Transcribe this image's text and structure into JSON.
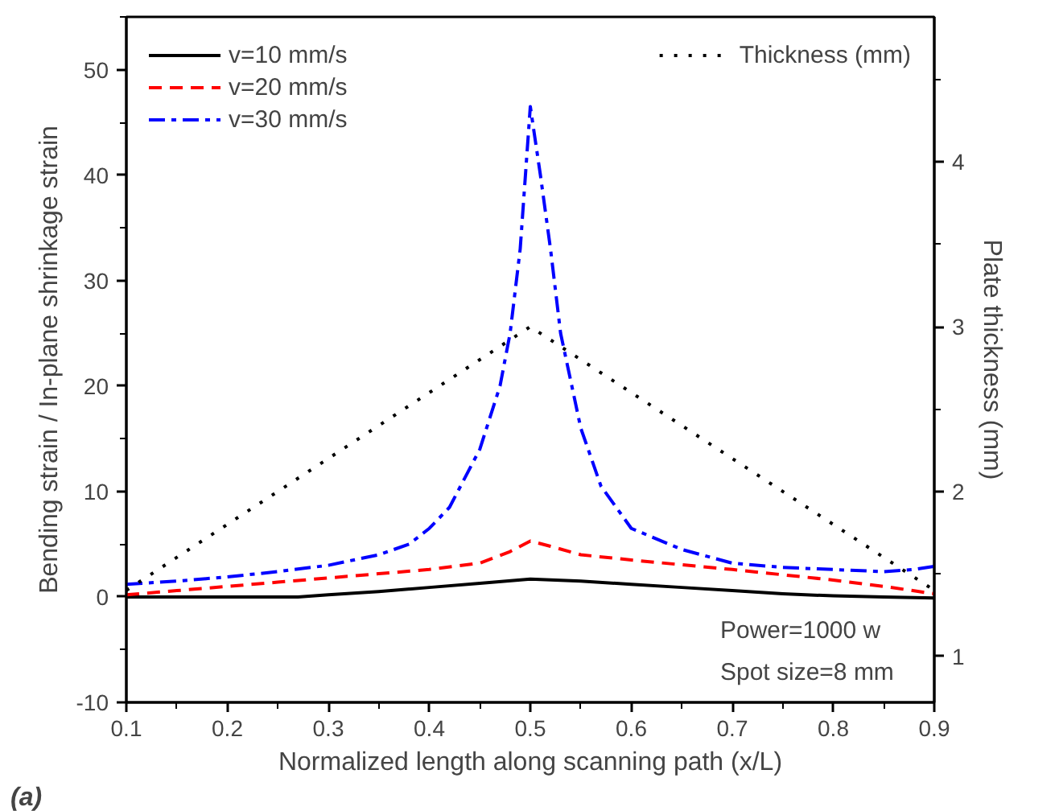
{
  "chart_data": {
    "type": "line",
    "xlabel": "Normalized length along scanning path (x/L)",
    "ylabel": "Bending strain / In-plane shrinkage strain",
    "y2label": "Plate thickness (mm)",
    "xlim": [
      0.1,
      0.9
    ],
    "xticks": [
      0.1,
      0.2,
      0.3,
      0.4,
      0.5,
      0.6,
      0.7,
      0.8,
      0.9
    ],
    "ylim": [
      -10,
      55
    ],
    "yticks": [
      -10,
      0,
      10,
      20,
      30,
      40,
      50
    ],
    "y2lim": [
      0.72,
      4.88
    ],
    "y2ticks": [
      1,
      2,
      3,
      4
    ],
    "legend": "top left",
    "grid": false,
    "marker": "none",
    "series": [
      {
        "name": "v=10 mm/s",
        "color": "#000000",
        "line_style": "solid",
        "x": [
          0.1,
          0.15,
          0.2,
          0.25,
          0.27,
          0.3,
          0.35,
          0.4,
          0.45,
          0.5,
          0.55,
          0.6,
          0.65,
          0.7,
          0.75,
          0.8,
          0.85,
          0.9
        ],
        "values": [
          0,
          0,
          0,
          0,
          0,
          0.2,
          0.5,
          0.9,
          1.3,
          1.7,
          1.5,
          1.2,
          0.9,
          0.6,
          0.3,
          0.1,
          0,
          -0.1
        ]
      },
      {
        "name": "v=20 mm/s",
        "color": "#ff0000",
        "line_style": "dashed",
        "x": [
          0.1,
          0.15,
          0.2,
          0.25,
          0.3,
          0.35,
          0.4,
          0.45,
          0.48,
          0.5,
          0.52,
          0.55,
          0.6,
          0.7,
          0.8,
          0.85,
          0.9
        ],
        "values": [
          0.2,
          0.6,
          1.0,
          1.4,
          1.8,
          2.2,
          2.6,
          3.2,
          4.3,
          5.3,
          4.8,
          4.0,
          3.5,
          2.6,
          1.6,
          1.0,
          0.3
        ]
      },
      {
        "name": "v=30 mm/s",
        "color": "#0000ff",
        "line_style": "dashdot",
        "x": [
          0.1,
          0.15,
          0.2,
          0.25,
          0.3,
          0.35,
          0.38,
          0.4,
          0.42,
          0.45,
          0.47,
          0.48,
          0.49,
          0.5,
          0.51,
          0.52,
          0.53,
          0.55,
          0.57,
          0.6,
          0.65,
          0.7,
          0.75,
          0.8,
          0.85,
          0.88,
          0.9
        ],
        "values": [
          1.2,
          1.5,
          1.9,
          2.4,
          3.0,
          4.0,
          5.0,
          6.5,
          8.5,
          14,
          20,
          25,
          33,
          46.5,
          40,
          33,
          25,
          16,
          10.5,
          6.5,
          4.5,
          3.2,
          2.8,
          2.6,
          2.4,
          2.6,
          2.9
        ]
      },
      {
        "name": "Thickness (mm)",
        "color": "#000000",
        "line_style": "dotted",
        "axis": "y2",
        "x": [
          0.1,
          0.5,
          0.9
        ],
        "values": [
          1.4,
          3.0,
          1.4
        ]
      }
    ],
    "annotations": [
      "Power=1000 w",
      "Spot size=8 mm",
      "(a)"
    ]
  }
}
